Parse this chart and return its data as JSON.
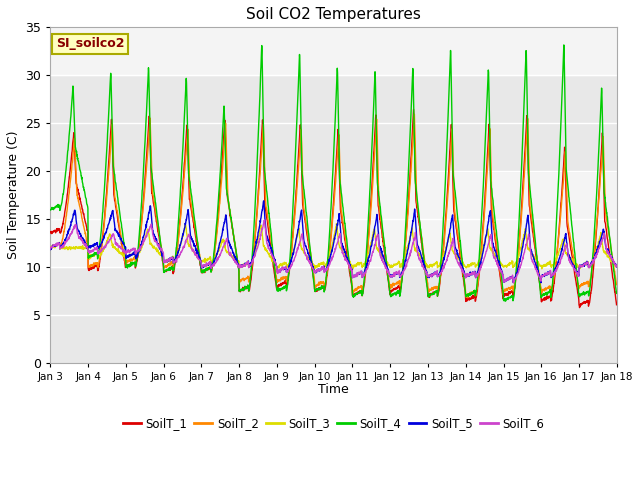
{
  "title": "Soil CO2 Temperatures",
  "xlabel": "Time",
  "ylabel": "Soil Temperature (C)",
  "ylim": [
    0,
    35
  ],
  "sensor_label": "SI_soilco2",
  "colors": {
    "SoilT_1": "#dd0000",
    "SoilT_2": "#ff8800",
    "SoilT_3": "#dddd00",
    "SoilT_4": "#00cc00",
    "SoilT_5": "#0000dd",
    "SoilT_6": "#cc44cc"
  },
  "legend_labels": [
    "SoilT_1",
    "SoilT_2",
    "SoilT_3",
    "SoilT_4",
    "SoilT_5",
    "SoilT_6"
  ],
  "xtick_labels": [
    "Jan 3",
    "Jan 4",
    "Jan 5",
    "Jan 6",
    "Jan 7",
    "Jan 8",
    "Jan 9",
    "Jan 10",
    "Jan 11",
    "Jan 12",
    "Jan 13",
    "Jan 14",
    "Jan 15",
    "Jan 16",
    "Jan 17",
    "Jan 18"
  ],
  "background_color": "#f0f0f0",
  "band1_color": "#e0e0e0",
  "band2_color": "#e8e8e8",
  "peak_heights_T1": [
    24.0,
    25.5,
    26.0,
    25.0,
    25.5,
    25.5,
    25.0,
    24.5,
    26.0,
    26.5,
    25.0,
    25.0,
    26.0,
    22.5,
    24.0
  ],
  "peak_heights_T2": [
    23.5,
    25.0,
    25.5,
    24.5,
    25.0,
    25.0,
    24.5,
    24.0,
    25.5,
    26.0,
    24.5,
    24.5,
    25.5,
    22.0,
    23.5
  ],
  "peak_heights_T3": [
    12.0,
    13.5,
    14.0,
    14.5,
    13.0,
    14.5,
    14.0,
    14.5,
    14.0,
    14.0,
    13.5,
    14.0,
    14.0,
    13.0,
    13.5
  ],
  "peak_heights_T4": [
    29.0,
    30.5,
    31.0,
    30.0,
    27.0,
    33.5,
    32.5,
    31.0,
    30.5,
    31.0,
    33.0,
    31.0,
    33.0,
    33.5,
    29.0
  ],
  "peak_heights_T5": [
    16.0,
    16.0,
    16.5,
    16.0,
    15.5,
    17.0,
    16.0,
    15.5,
    15.5,
    16.0,
    15.5,
    16.0,
    15.5,
    13.5,
    14.0
  ],
  "peak_heights_T6": [
    14.5,
    13.5,
    14.5,
    13.5,
    13.0,
    15.0,
    13.5,
    13.5,
    13.5,
    13.5,
    13.0,
    13.5,
    13.5,
    12.5,
    13.5
  ],
  "min_heights_T1": [
    13.5,
    9.7,
    10.0,
    9.5,
    9.5,
    7.5,
    8.0,
    7.5,
    7.0,
    7.5,
    7.0,
    6.5,
    7.0,
    6.5,
    6.0
  ],
  "min_heights_T2": [
    12.0,
    10.0,
    10.5,
    10.0,
    9.5,
    8.5,
    8.5,
    8.0,
    7.5,
    8.0,
    7.5,
    7.0,
    7.5,
    7.5,
    8.0
  ],
  "min_heights_T3": [
    12.0,
    11.0,
    11.0,
    10.5,
    10.5,
    10.0,
    10.0,
    10.0,
    10.0,
    10.0,
    10.0,
    10.0,
    10.0,
    10.0,
    10.0
  ],
  "min_heights_T4": [
    16.0,
    11.0,
    10.0,
    9.5,
    9.5,
    7.5,
    7.5,
    7.5,
    7.0,
    7.0,
    7.0,
    7.0,
    6.5,
    7.0,
    7.0
  ],
  "min_heights_T5": [
    12.0,
    12.0,
    11.0,
    10.5,
    10.0,
    10.0,
    9.5,
    9.5,
    9.0,
    9.0,
    9.0,
    9.0,
    8.5,
    9.0,
    10.0
  ],
  "min_heights_T6": [
    12.0,
    11.5,
    11.5,
    10.5,
    10.0,
    10.0,
    9.5,
    9.5,
    9.0,
    9.0,
    9.0,
    9.0,
    8.5,
    9.0,
    10.0
  ]
}
